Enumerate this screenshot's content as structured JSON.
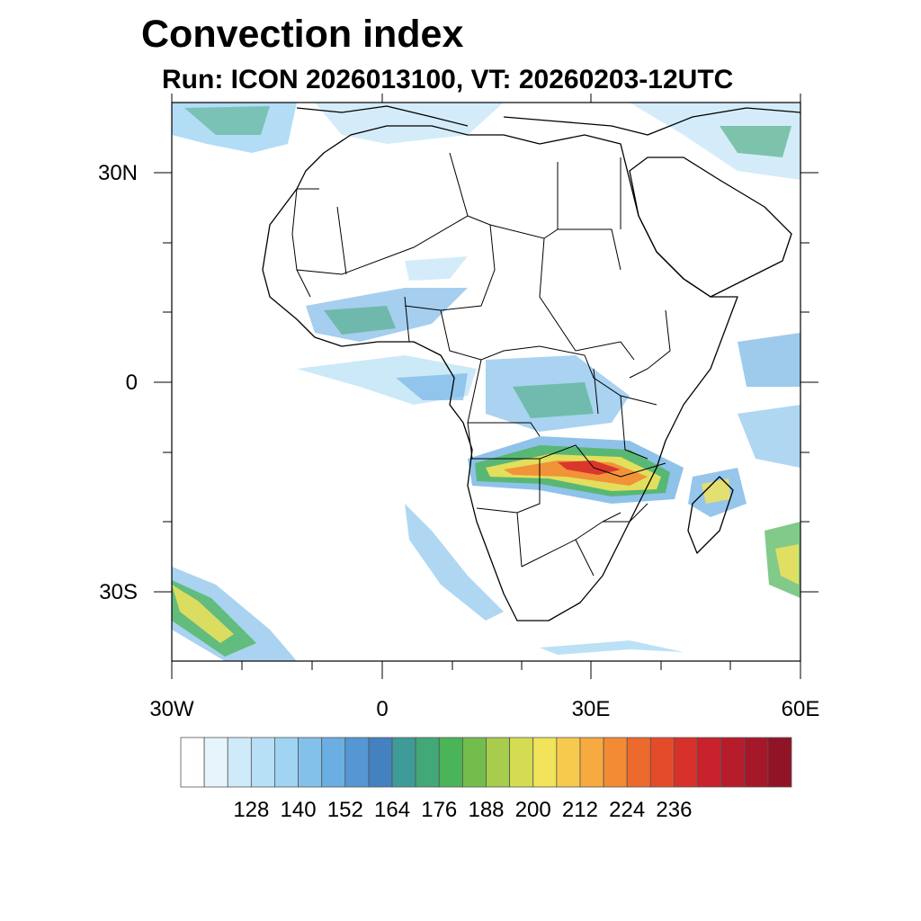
{
  "title": "Convection index",
  "subtitle": "Run: ICON 2026013100,  VT: 20260203-12UTC",
  "axes": {
    "x_ticks": [
      "30W",
      "0",
      "30E",
      "60E"
    ],
    "y_ticks": [
      "30N",
      "0",
      "30S"
    ],
    "lon_range": [
      -30,
      60
    ],
    "lat_range": [
      -40,
      40
    ]
  },
  "colorbar": {
    "tick_labels": [
      "128",
      "140",
      "152",
      "164",
      "176",
      "188",
      "200",
      "212",
      "224",
      "236"
    ],
    "colors": [
      "#ffffff",
      "#e6f4fc",
      "#cfeaf8",
      "#b7dff5",
      "#9fd4f2",
      "#84c1ea",
      "#6aaee2",
      "#5597d3",
      "#4481c1",
      "#3e9b97",
      "#42a877",
      "#4bb458",
      "#73bd4d",
      "#a8cc4c",
      "#d4dc52",
      "#f1e35a",
      "#f7c94d",
      "#f6aa3f",
      "#f38b35",
      "#ed6a2d",
      "#e44c29",
      "#d8312b",
      "#c8222c",
      "#b71c2b",
      "#a5182a",
      "#901426"
    ]
  },
  "overlays": {
    "label": "Convection index"
  }
}
